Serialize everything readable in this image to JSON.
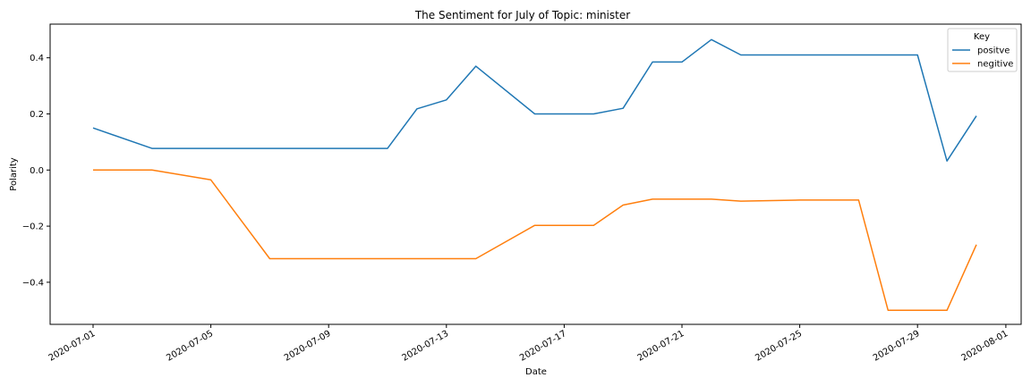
{
  "chart_data": {
    "type": "line",
    "title": "The Sentiment for July of Topic: minister",
    "xlabel": "Date",
    "ylabel": "Polarity",
    "x_ticks": [
      "2020-07-01",
      "2020-07-05",
      "2020-07-09",
      "2020-07-13",
      "2020-07-17",
      "2020-07-21",
      "2020-07-25",
      "2020-07-29",
      "2020-08-01"
    ],
    "y_ticks": [
      "−0.4",
      "−0.2",
      "0.0",
      "0.2",
      "0.4"
    ],
    "xlim": [
      "2020-06-30",
      "2020-08-01"
    ],
    "ylim": [
      -0.55,
      0.52
    ],
    "grid": false,
    "legend": {
      "title": "Key",
      "placement": "top-right"
    },
    "series": [
      {
        "name": "positve",
        "color": "#1f77b4",
        "points": [
          [
            "2020-07-01",
            0.15
          ],
          [
            "2020-07-03",
            0.077
          ],
          [
            "2020-07-05",
            0.077
          ],
          [
            "2020-07-07",
            0.077
          ],
          [
            "2020-07-09",
            0.077
          ],
          [
            "2020-07-11",
            0.077
          ],
          [
            "2020-07-12",
            0.218
          ],
          [
            "2020-07-13",
            0.25
          ],
          [
            "2020-07-14",
            0.37
          ],
          [
            "2020-07-16",
            0.2
          ],
          [
            "2020-07-18",
            0.2
          ],
          [
            "2020-07-19",
            0.22
          ],
          [
            "2020-07-20",
            0.385
          ],
          [
            "2020-07-21",
            0.385
          ],
          [
            "2020-07-22",
            0.465
          ],
          [
            "2020-07-23",
            0.41
          ],
          [
            "2020-07-25",
            0.41
          ],
          [
            "2020-07-27",
            0.41
          ],
          [
            "2020-07-29",
            0.41
          ],
          [
            "2020-07-30",
            0.032
          ],
          [
            "2020-07-31",
            0.193
          ]
        ]
      },
      {
        "name": "negitive",
        "color": "#ff7f0e",
        "points": [
          [
            "2020-07-01",
            0.0
          ],
          [
            "2020-07-03",
            0.0
          ],
          [
            "2020-07-05",
            -0.035
          ],
          [
            "2020-07-07",
            -0.316
          ],
          [
            "2020-07-09",
            -0.316
          ],
          [
            "2020-07-11",
            -0.316
          ],
          [
            "2020-07-13",
            -0.316
          ],
          [
            "2020-07-14",
            -0.316
          ],
          [
            "2020-07-16",
            -0.197
          ],
          [
            "2020-07-18",
            -0.197
          ],
          [
            "2020-07-19",
            -0.125
          ],
          [
            "2020-07-20",
            -0.104
          ],
          [
            "2020-07-22",
            -0.104
          ],
          [
            "2020-07-23",
            -0.111
          ],
          [
            "2020-07-25",
            -0.107
          ],
          [
            "2020-07-27",
            -0.107
          ],
          [
            "2020-07-28",
            -0.5
          ],
          [
            "2020-07-30",
            -0.5
          ],
          [
            "2020-07-31",
            -0.266
          ]
        ]
      }
    ]
  }
}
